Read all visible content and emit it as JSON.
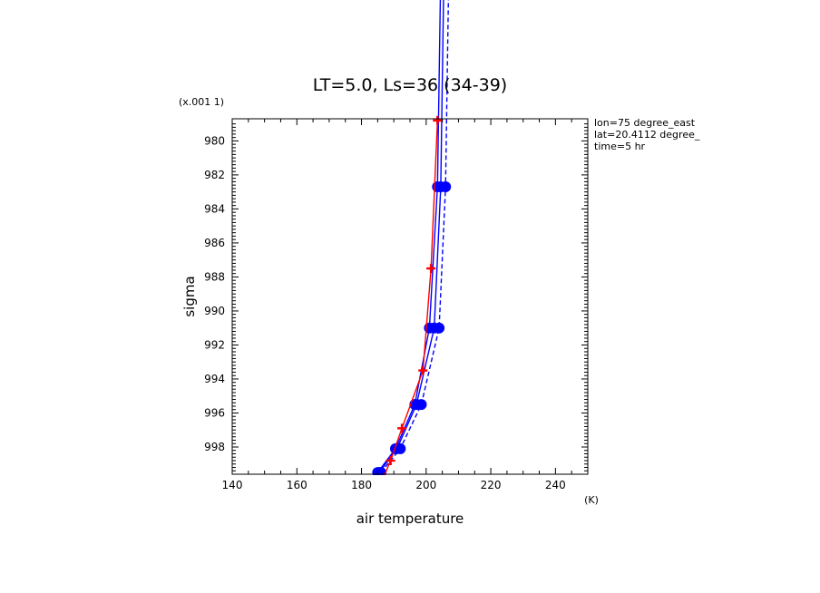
{
  "chart_data": {
    "type": "line",
    "title": "LT=5.0, Ls=36 (34-39)",
    "xlabel": "air temperature",
    "xunit": "(K)",
    "ylabel": "sigma",
    "yscale_label": "(x.001 1)",
    "xlim": [
      140,
      250
    ],
    "ylim": [
      999.6,
      978.7
    ],
    "y_inverted": true,
    "x_ticks": [
      140,
      160,
      180,
      200,
      220,
      240
    ],
    "y_ticks": [
      980,
      982,
      984,
      986,
      988,
      990,
      992,
      994,
      996,
      998
    ],
    "x_tick_labels": [
      "140",
      "160",
      "180",
      "200",
      "220",
      "240"
    ],
    "y_tick_labels": [
      "980",
      "982",
      "984",
      "986",
      "988",
      "990",
      "992",
      "994",
      "996",
      "998"
    ],
    "annotations": [
      "lon=75 degree_east",
      "lat=20.4112 degree_",
      "time=5 hr"
    ],
    "grid": false,
    "series": [
      {
        "color": "#0000ff",
        "style": "solid",
        "marker": "circle",
        "points": [
          [
            185.0,
            999.5
          ],
          [
            190.5,
            998.1
          ],
          [
            196.5,
            995.5
          ],
          [
            201.0,
            991.0
          ],
          [
            203.5,
            982.7
          ],
          [
            204.5,
            970.0
          ]
        ]
      },
      {
        "color": "#0000ff",
        "style": "dashed",
        "marker": "circle",
        "points": [
          [
            186.0,
            999.5
          ],
          [
            192.0,
            998.1
          ],
          [
            198.5,
            995.5
          ],
          [
            204.0,
            991.0
          ],
          [
            206.0,
            982.7
          ],
          [
            207.0,
            970.0
          ]
        ]
      },
      {
        "color": "#0000ff",
        "style": "solid",
        "marker": "circle",
        "points": [
          [
            185.5,
            999.5
          ],
          [
            191.0,
            998.1
          ],
          [
            197.0,
            995.5
          ],
          [
            202.5,
            991.0
          ],
          [
            204.5,
            982.7
          ],
          [
            205.5,
            970.0
          ]
        ]
      },
      {
        "color": "#ff0000",
        "style": "solid",
        "marker": "plus",
        "points": [
          [
            187.0,
            999.7
          ],
          [
            189.0,
            998.8
          ],
          [
            192.5,
            996.9
          ],
          [
            199.0,
            993.5
          ],
          [
            201.5,
            987.5
          ],
          [
            203.5,
            978.8
          ]
        ]
      }
    ]
  }
}
